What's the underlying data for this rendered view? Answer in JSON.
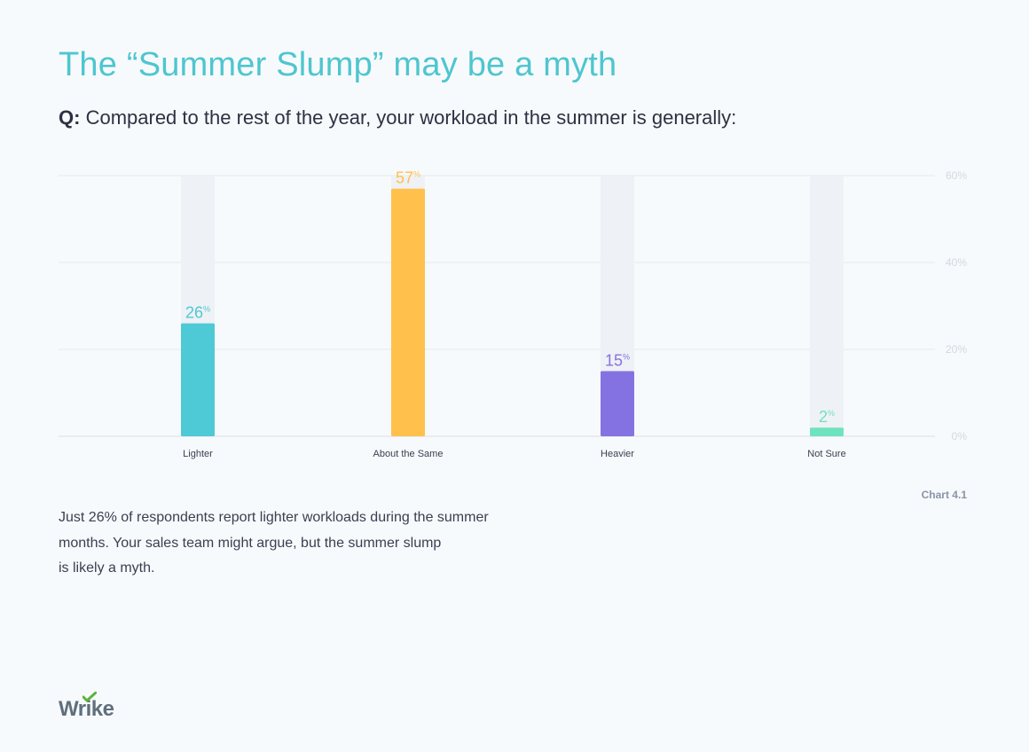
{
  "header": {
    "title": "The “Summer Slump” may be a myth",
    "question_prefix": "Q:",
    "question_text": "Compared to the rest of the year, your workload in the summer is generally:"
  },
  "chart_data": {
    "type": "bar",
    "categories": [
      "Lighter",
      "About the Same",
      "Heavier",
      "Not Sure"
    ],
    "values": [
      26,
      57,
      15,
      2
    ],
    "value_suffix": "%",
    "ylim": [
      0,
      60
    ],
    "yticks": [
      "0%",
      "20%",
      "40%",
      "60%"
    ],
    "grid": true,
    "colors": [
      "#4ec9d6",
      "#ffc04c",
      "#8572e2",
      "#6fe3bd"
    ],
    "track_color": "#eef1f5"
  },
  "footer": {
    "chart_id": "Chart 4.1",
    "body_lines": [
      "Just 26% of respondents report lighter workloads during the summer",
      "months. Your sales team might argue, but the summer slump",
      "is likely a myth."
    ],
    "logo_text_a": "Wr",
    "logo_text_b": "i",
    "logo_text_c": "ke",
    "logo_check_color": "#5bb53b"
  }
}
